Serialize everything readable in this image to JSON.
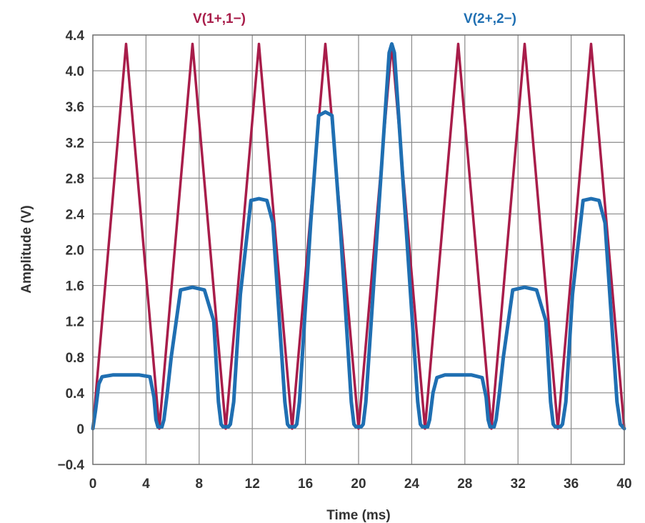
{
  "chart_data": {
    "type": "line",
    "title": "",
    "xlabel": "Time (ms)",
    "ylabel": "Amplitude (V)",
    "xlim": [
      0,
      40
    ],
    "ylim": [
      -0.4,
      4.4
    ],
    "xticks": [
      "0",
      "4",
      "8",
      "12",
      "16",
      "20",
      "24",
      "28",
      "32",
      "36",
      "40"
    ],
    "yticks": [
      "4.4",
      "4.0",
      "3.6",
      "3.2",
      "2.8",
      "2.4",
      "2.0",
      "1.6",
      "1.2",
      "0.8",
      "0.4",
      "0",
      "−0.4"
    ],
    "grid": true,
    "legend_position": "top",
    "series": [
      {
        "name": "V(1+,1−)",
        "color": "#a81d4a",
        "x": [
          0,
          2.5,
          5,
          7.5,
          10,
          12.5,
          15,
          17.5,
          20,
          22.5,
          25,
          27.5,
          30,
          32.5,
          35,
          37.5,
          40
        ],
        "y": [
          0,
          4.3,
          0,
          4.3,
          0,
          4.3,
          0,
          4.3,
          0,
          4.3,
          0,
          4.3,
          0,
          4.3,
          0,
          4.3,
          0
        ]
      },
      {
        "name": "V(2+,2−)",
        "color": "#1f6fb2",
        "x": [
          0,
          0.2,
          0.45,
          0.7,
          1.5,
          2.5,
          3.5,
          4.3,
          4.6,
          4.75,
          4.9,
          5.2,
          5.35,
          5.6,
          5.9,
          6.6,
          7.5,
          8.4,
          9.1,
          9.45,
          9.65,
          9.8,
          10.2,
          10.35,
          10.6,
          11.1,
          11.9,
          12.5,
          13.1,
          13.55,
          14.45,
          14.65,
          14.8,
          15.2,
          15.35,
          15.55,
          16.4,
          17.0,
          17.5,
          18.0,
          18.6,
          19.45,
          19.65,
          19.8,
          20.2,
          20.35,
          20.55,
          22.3,
          22.5,
          22.7,
          24.45,
          24.65,
          24.8,
          25.2,
          25.35,
          25.6,
          25.9,
          26.5,
          27.5,
          28.5,
          29.3,
          29.6,
          29.75,
          29.9,
          30.2,
          30.35,
          30.6,
          30.9,
          31.6,
          32.5,
          33.4,
          34.1,
          34.45,
          34.65,
          34.8,
          35.2,
          35.35,
          35.6,
          36.1,
          36.9,
          37.5,
          38.1,
          38.55,
          39.45,
          39.7,
          40
        ],
        "y": [
          0,
          0.2,
          0.5,
          0.58,
          0.6,
          0.6,
          0.6,
          0.58,
          0.35,
          0.1,
          0.02,
          0.02,
          0.1,
          0.4,
          0.8,
          1.55,
          1.58,
          1.55,
          1.2,
          0.3,
          0.05,
          0.02,
          0.02,
          0.05,
          0.3,
          1.5,
          2.55,
          2.57,
          2.55,
          2.3,
          0.3,
          0.05,
          0.02,
          0.02,
          0.05,
          0.3,
          2.3,
          3.5,
          3.54,
          3.5,
          2.3,
          0.3,
          0.05,
          0.02,
          0.02,
          0.05,
          0.3,
          4.2,
          4.3,
          4.2,
          0.3,
          0.05,
          0.02,
          0.02,
          0.1,
          0.4,
          0.57,
          0.6,
          0.6,
          0.6,
          0.57,
          0.35,
          0.1,
          0.02,
          0.02,
          0.1,
          0.4,
          0.8,
          1.55,
          1.58,
          1.55,
          1.2,
          0.3,
          0.05,
          0.02,
          0.02,
          0.05,
          0.3,
          1.5,
          2.55,
          2.57,
          2.55,
          2.3,
          0.3,
          0.05,
          0
        ]
      }
    ]
  }
}
